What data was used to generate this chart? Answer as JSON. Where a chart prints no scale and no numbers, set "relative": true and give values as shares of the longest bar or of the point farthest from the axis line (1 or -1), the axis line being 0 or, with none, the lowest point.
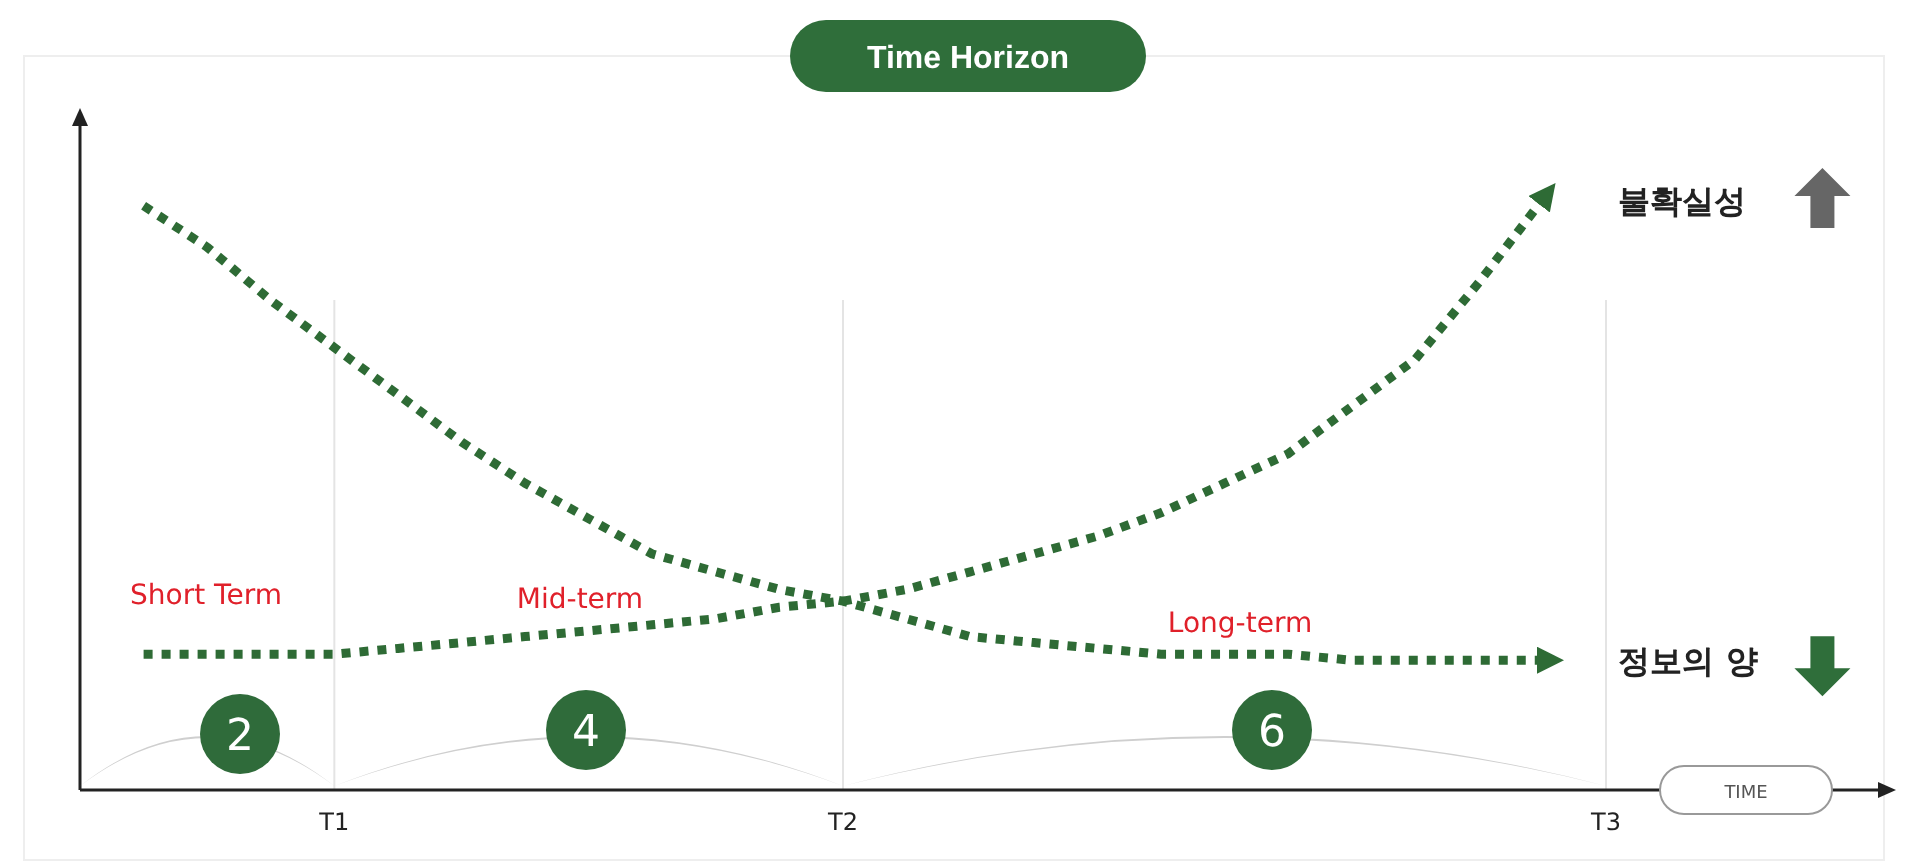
{
  "chart_data": {
    "type": "line",
    "relative": true,
    "title": "Time Horizon",
    "xlabel": "TIME",
    "categories": [
      null,
      null,
      null,
      null,
      "T1",
      null,
      null,
      null,
      null,
      null,
      null,
      null,
      "T2",
      null,
      null,
      null,
      null,
      null,
      null,
      null,
      null,
      null,
      null,
      null,
      "T3"
    ],
    "grid": "x",
    "legend": "right",
    "line_style": "dotted",
    "marker": "none",
    "annotations": [
      "Short Term",
      "Mid-term",
      "Long-term",
      "2",
      "4",
      "6"
    ],
    "series": [
      {
        "name": "불확실성",
        "color": "#2e6b35",
        "values": [
          null,
          0.23,
          0.23,
          0.23,
          0.23,
          0.24,
          0.25,
          0.26,
          0.27,
          0.28,
          0.29,
          0.31,
          0.32,
          0.34,
          0.37,
          0.4,
          0.43,
          0.47,
          0.52,
          0.57,
          0.65,
          0.73,
          0.86,
          1,
          null
        ]
      },
      {
        "name": "정보의 양",
        "color": "#2e6b35",
        "values": [
          null,
          0.99,
          0.92,
          0.83,
          0.75,
          0.67,
          0.59,
          0.52,
          0.46,
          0.4,
          0.37,
          0.34,
          0.32,
          0.29,
          0.26,
          0.25,
          0.24,
          0.23,
          0.23,
          0.23,
          0.22,
          0.22,
          0.22,
          0.22,
          null
        ]
      }
    ]
  }
}
